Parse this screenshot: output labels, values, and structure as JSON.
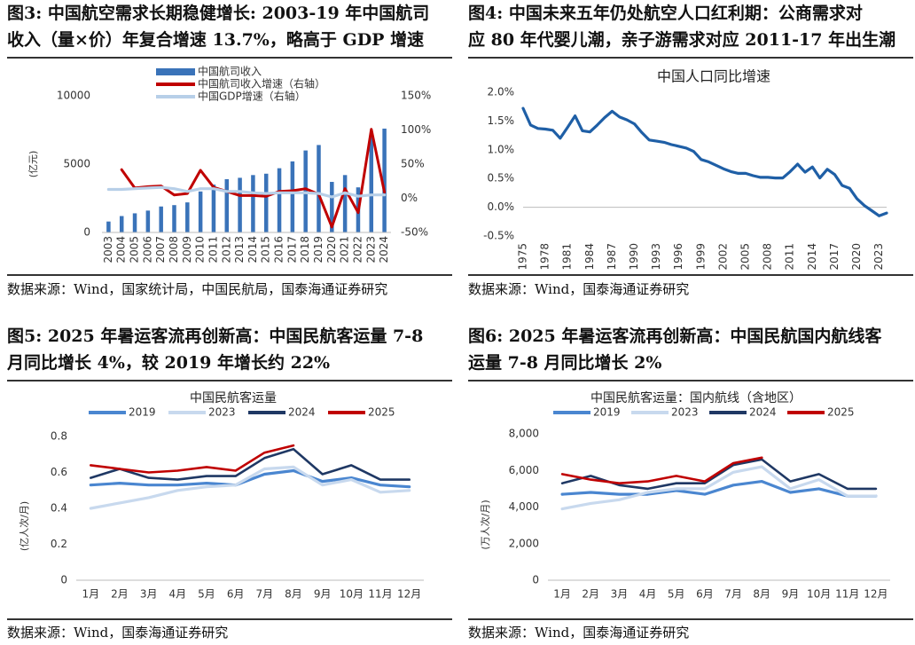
{
  "panels": [
    {
      "title": "图3:  中国航空需求长期稳健增长: 2003-19 年中国航司\n收入（量×价）年复合增速 13.7%，略高于 GDP 增速",
      "source": "数据来源：Wind，国家统计局，中国民航局，国泰海通证券研究"
    },
    {
      "title": "图4:  中国未来五年仍处航空人口红利期：公商需求对\n应 80 年代婴儿潮，亲子游需求对应 2011-17 年出生潮",
      "source": "数据来源：Wind，国泰海通证券研究"
    },
    {
      "title": "图5:  2025 年暑运客流再创新高：中国民航客运量 7-8\n月同比增长 4%，较 2019 年增长约 22%",
      "source": "数据来源：Wind，国泰海通证券研究"
    },
    {
      "title": "图6:  2025 年暑运客流再创新高：中国民航国内航线客\n运量 7-8 月同比增长 2%",
      "source": "数据来源：Wind，国泰海通证券研究"
    }
  ],
  "colors": {
    "blue_bar": "#3a73b9",
    "red": "#c00000",
    "light_blue": "#b7cfe8",
    "line_blue": "#1f5fa6",
    "navy": "#1f3864",
    "mid_blue": "#4a86d0",
    "pale_blue": "#c8d9ee",
    "axis": "#cccccc"
  },
  "chart_data": [
    {
      "type": "bar",
      "title": "",
      "ylabel": "(亿元)",
      "ylim": [
        0,
        10000
      ],
      "y_ticks": [
        "0",
        "5000",
        "10000"
      ],
      "y2lim": [
        -50,
        150
      ],
      "y2_ticks": [
        "-50%",
        "0%",
        "50%",
        "100%",
        "150%"
      ],
      "legend_position": "top",
      "categories": [
        "2003",
        "2004",
        "2005",
        "2006",
        "2007",
        "2008",
        "2009",
        "2010",
        "2011",
        "2012",
        "2013",
        "2014",
        "2015",
        "2016",
        "2017",
        "2018",
        "2019",
        "2020",
        "2021",
        "2022",
        "2023",
        "2024"
      ],
      "series": [
        {
          "name": "中国航司收入",
          "kind": "bar",
          "axis": "left",
          "values": [
            800,
            1200,
            1400,
            1600,
            1900,
            2000,
            2200,
            3000,
            3500,
            3900,
            4000,
            4200,
            4300,
            4700,
            5200,
            6000,
            6400,
            3700,
            4200,
            3300,
            7000,
            7600
          ]
        },
        {
          "name": "中国航司收入增速（右轴）",
          "kind": "line",
          "axis": "right",
          "values": [
            null,
            42,
            15,
            17,
            18,
            5,
            7,
            41,
            16,
            10,
            4,
            4,
            3,
            10,
            11,
            14,
            6,
            -42,
            14,
            -21,
            101,
            9
          ]
        },
        {
          "name": "中国GDP增速（右轴）",
          "kind": "line",
          "axis": "right",
          "values": [
            13,
            13,
            14,
            15,
            16,
            14,
            10,
            14,
            14,
            10,
            10,
            8,
            7,
            8,
            8,
            8,
            7,
            2,
            8,
            3,
            5,
            5
          ]
        }
      ]
    },
    {
      "type": "line",
      "title": "中国人口同比增速",
      "ylim": [
        -0.5,
        2.0
      ],
      "y_ticks": [
        "-0.5%",
        "0.0%",
        "0.5%",
        "1.0%",
        "1.5%",
        "2.0%"
      ],
      "x_ticks": [
        "1975",
        "1978",
        "1981",
        "1984",
        "1987",
        "1990",
        "1993",
        "1996",
        "1999",
        "2002",
        "2005",
        "2008",
        "2011",
        "2014",
        "2017",
        "2020",
        "2023"
      ],
      "x": [
        1975,
        1976,
        1977,
        1978,
        1979,
        1980,
        1981,
        1982,
        1983,
        1984,
        1985,
        1986,
        1987,
        1988,
        1989,
        1990,
        1991,
        1992,
        1993,
        1994,
        1995,
        1996,
        1997,
        1998,
        1999,
        2000,
        2001,
        2002,
        2003,
        2004,
        2005,
        2006,
        2007,
        2008,
        2009,
        2010,
        2011,
        2012,
        2013,
        2014,
        2015,
        2016,
        2017,
        2018,
        2019,
        2020,
        2021,
        2022,
        2023,
        2024
      ],
      "series": [
        {
          "name": "",
          "values": [
            1.72,
            1.43,
            1.37,
            1.36,
            1.34,
            1.2,
            1.39,
            1.59,
            1.33,
            1.31,
            1.43,
            1.56,
            1.67,
            1.57,
            1.52,
            1.45,
            1.3,
            1.17,
            1.15,
            1.13,
            1.09,
            1.06,
            1.03,
            0.97,
            0.83,
            0.79,
            0.73,
            0.67,
            0.62,
            0.59,
            0.59,
            0.55,
            0.52,
            0.52,
            0.51,
            0.51,
            0.62,
            0.75,
            0.61,
            0.7,
            0.51,
            0.66,
            0.57,
            0.38,
            0.33,
            0.15,
            0.03,
            -0.06,
            -0.15,
            -0.1
          ]
        }
      ]
    },
    {
      "type": "line",
      "title": "中国民航客运量",
      "ylabel": "(亿人次/月)",
      "ylim": [
        0,
        0.8
      ],
      "y_ticks": [
        "0",
        "0.2",
        "0.4",
        "0.6",
        "0.8"
      ],
      "legend_position": "top",
      "categories": [
        "1月",
        "2月",
        "3月",
        "4月",
        "5月",
        "6月",
        "7月",
        "8月",
        "9月",
        "10月",
        "11月",
        "12月"
      ],
      "series": [
        {
          "name": "2019",
          "values": [
            0.53,
            0.54,
            0.53,
            0.53,
            0.54,
            0.53,
            0.59,
            0.61,
            0.55,
            0.57,
            0.53,
            0.52
          ]
        },
        {
          "name": "2023",
          "values": [
            0.4,
            0.43,
            0.46,
            0.5,
            0.52,
            0.53,
            0.62,
            0.63,
            0.53,
            0.56,
            0.49,
            0.5
          ]
        },
        {
          "name": "2024",
          "values": [
            0.57,
            0.62,
            0.57,
            0.56,
            0.58,
            0.58,
            0.68,
            0.73,
            0.59,
            0.64,
            0.56,
            0.56
          ]
        },
        {
          "name": "2025",
          "values": [
            0.64,
            0.62,
            0.6,
            0.61,
            0.63,
            0.61,
            0.71,
            0.75,
            null,
            null,
            null,
            null
          ]
        }
      ]
    },
    {
      "type": "line",
      "title": "中国民航客运量：国内航线（含地区）",
      "ylabel": "(万人次/月)",
      "ylim": [
        0,
        8000
      ],
      "y_ticks": [
        "0",
        "2,000",
        "4,000",
        "6,000",
        "8,000"
      ],
      "legend_position": "top",
      "categories": [
        "1月",
        "2月",
        "3月",
        "4月",
        "5月",
        "6月",
        "7月",
        "8月",
        "9月",
        "10月",
        "11月",
        "12月"
      ],
      "series": [
        {
          "name": "2019",
          "values": [
            4700,
            4800,
            4700,
            4700,
            4900,
            4700,
            5200,
            5400,
            4800,
            5000,
            4600,
            4600
          ]
        },
        {
          "name": "2023",
          "values": [
            3900,
            4200,
            4400,
            4800,
            5000,
            5000,
            5900,
            6200,
            5000,
            5500,
            4600,
            4600
          ]
        },
        {
          "name": "2024",
          "values": [
            5300,
            5700,
            5200,
            5000,
            5300,
            5300,
            6300,
            6600,
            5400,
            5800,
            5000,
            5000
          ]
        },
        {
          "name": "2025",
          "values": [
            5800,
            5500,
            5300,
            5400,
            5700,
            5400,
            6400,
            6700,
            null,
            null,
            null,
            null
          ]
        }
      ]
    }
  ]
}
